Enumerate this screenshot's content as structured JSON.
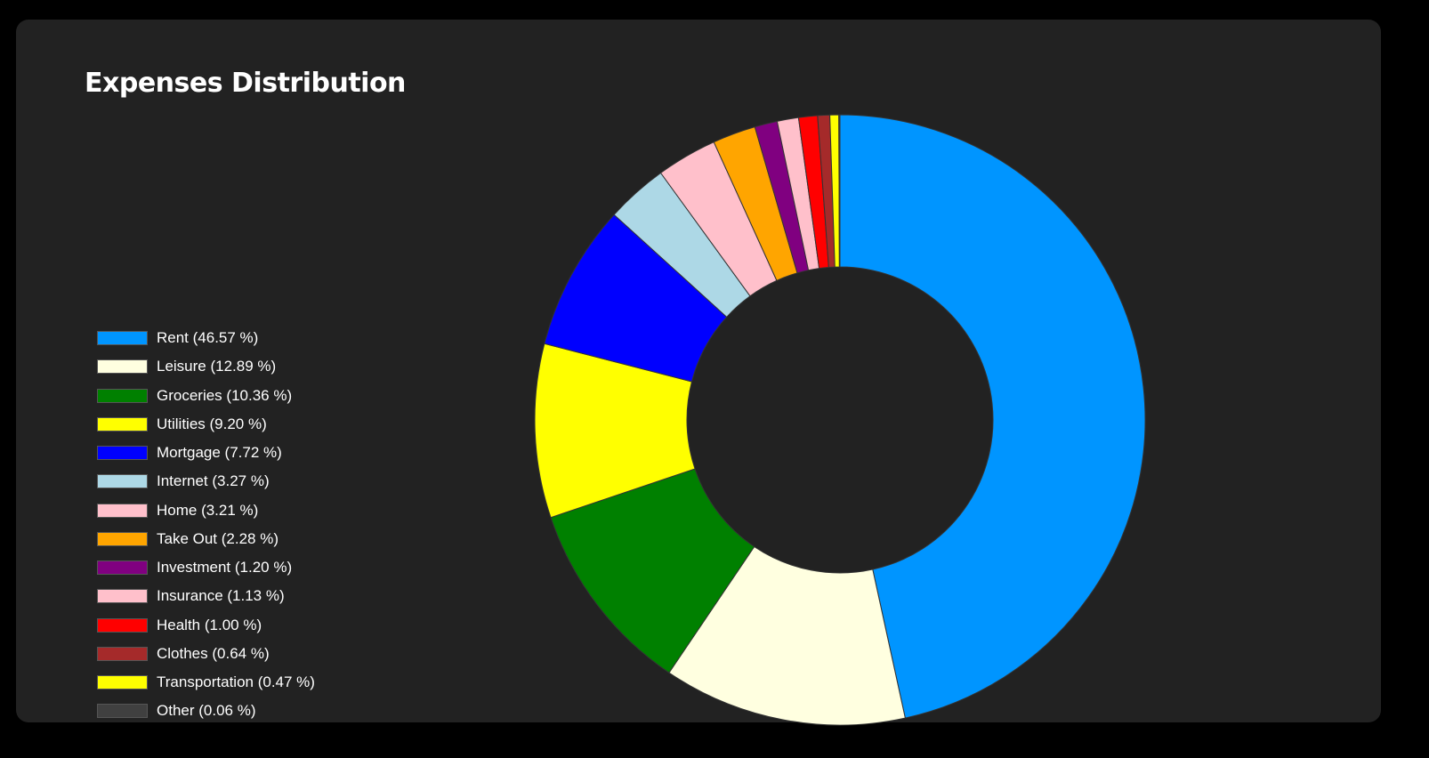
{
  "title": "Expenses Distribution",
  "chart_data": {
    "type": "pie",
    "variant": "donut",
    "title": "Expenses Distribution",
    "unit": "%",
    "legend_position": "left",
    "slices": [
      {
        "label": "Rent",
        "value": 46.57,
        "display": "Rent (46.57 %)",
        "color": "#0095ff"
      },
      {
        "label": "Leisure",
        "value": 12.89,
        "display": "Leisure (12.89 %)",
        "color": "#ffffe0"
      },
      {
        "label": "Groceries",
        "value": 10.36,
        "display": "Groceries (10.36 %)",
        "color": "#008000"
      },
      {
        "label": "Utilities",
        "value": 9.2,
        "display": "Utilities (9.20 %)",
        "color": "#ffff00"
      },
      {
        "label": "Mortgage",
        "value": 7.72,
        "display": "Mortgage (7.72 %)",
        "color": "#0000ff"
      },
      {
        "label": "Internet",
        "value": 3.27,
        "display": "Internet (3.27 %)",
        "color": "#add8e6"
      },
      {
        "label": "Home",
        "value": 3.21,
        "display": "Home (3.21 %)",
        "color": "#ffc0cb"
      },
      {
        "label": "Take Out",
        "value": 2.28,
        "display": "Take Out (2.28 %)",
        "color": "#ffa500"
      },
      {
        "label": "Investment",
        "value": 1.2,
        "display": "Investment (1.20 %)",
        "color": "#800080"
      },
      {
        "label": "Insurance",
        "value": 1.13,
        "display": "Insurance (1.13 %)",
        "color": "#ffc0cb"
      },
      {
        "label": "Health",
        "value": 1.0,
        "display": "Health (1.00 %)",
        "color": "#ff0000"
      },
      {
        "label": "Clothes",
        "value": 0.64,
        "display": "Clothes (0.64 %)",
        "color": "#a52a2a"
      },
      {
        "label": "Transportation",
        "value": 0.47,
        "display": "Transportation (0.47 %)",
        "color": "#ffff00"
      },
      {
        "label": "Other",
        "value": 0.06,
        "display": "Other (0.06 %)",
        "color": "#404040"
      }
    ]
  }
}
